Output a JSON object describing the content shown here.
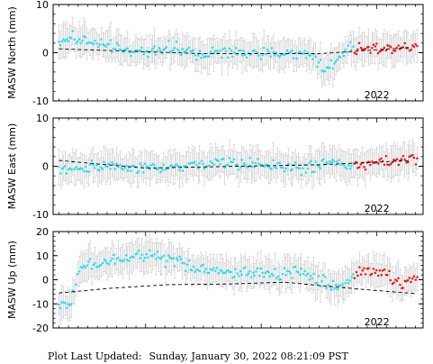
{
  "footer": {
    "label": "Plot Last Updated:",
    "timestamp": "Sunday, January 30, 2022 08:21:09 PST"
  },
  "colors": {
    "points": "#22ddee",
    "recent_points": "#ee1111",
    "error_bars": "#cccccc",
    "trend": "#000000",
    "axes": "#000000"
  },
  "chart_data": [
    {
      "type": "scatter",
      "ylabel": "MASW North (mm)",
      "ylim": [
        -10,
        10
      ],
      "yticks": [
        -10,
        0,
        10
      ],
      "xlim": [
        2019.2,
        2022.4
      ],
      "xticks": [
        {
          "value": 2022.0,
          "label": "2022"
        }
      ],
      "trend": [
        [
          2019.25,
          0.8
        ],
        [
          2020.5,
          -0.2
        ],
        [
          2021.5,
          -0.2
        ],
        [
          2022.3,
          1.1
        ]
      ],
      "anchors": [
        [
          2019.25,
          2.5
        ],
        [
          2019.4,
          3.0
        ],
        [
          2019.55,
          2.0
        ],
        [
          2019.8,
          0.4
        ],
        [
          2020.0,
          0.2
        ],
        [
          2020.2,
          1.0
        ],
        [
          2020.45,
          -0.3
        ],
        [
          2020.8,
          0.0
        ],
        [
          2021.2,
          -0.2
        ],
        [
          2021.45,
          -0.5
        ],
        [
          2021.55,
          -3.5
        ],
        [
          2021.65,
          -1.5
        ],
        [
          2021.75,
          0.8
        ],
        [
          2022.0,
          1.0
        ],
        [
          2022.35,
          1.4
        ]
      ],
      "recent_from": 2021.8
    },
    {
      "type": "scatter",
      "ylabel": "MASW East (mm)",
      "ylim": [
        -10,
        10
      ],
      "yticks": [
        -10,
        0,
        10
      ],
      "xlim": [
        2019.2,
        2022.4
      ],
      "xticks": [
        {
          "value": 2022.0,
          "label": "2022"
        }
      ],
      "trend": [
        [
          2019.25,
          1.2
        ],
        [
          2020.0,
          -0.4
        ],
        [
          2020.8,
          0.0
        ],
        [
          2021.5,
          0.3
        ],
        [
          2022.3,
          1.2
        ]
      ],
      "anchors": [
        [
          2019.25,
          -0.8
        ],
        [
          2019.4,
          -0.3
        ],
        [
          2019.6,
          0.0
        ],
        [
          2019.9,
          -0.5
        ],
        [
          2020.2,
          -0.6
        ],
        [
          2020.5,
          0.6
        ],
        [
          2020.8,
          0.6
        ],
        [
          2021.1,
          0.2
        ],
        [
          2021.35,
          -0.6
        ],
        [
          2021.6,
          0.9
        ],
        [
          2021.85,
          0.0
        ],
        [
          2022.1,
          1.3
        ],
        [
          2022.35,
          1.6
        ]
      ],
      "recent_from": 2021.8
    },
    {
      "type": "scatter",
      "ylabel": "MASW Up (mm)",
      "ylim": [
        -20,
        20
      ],
      "yticks": [
        -20,
        -10,
        0,
        10,
        20
      ],
      "xlim": [
        2019.2,
        2022.4
      ],
      "xticks": [
        {
          "value": 2022.0,
          "label": "2022"
        }
      ],
      "trend": [
        [
          2019.25,
          -5.5
        ],
        [
          2019.7,
          -3.5
        ],
        [
          2020.2,
          -2.0
        ],
        [
          2020.7,
          -1.8
        ],
        [
          2021.2,
          -1.0
        ],
        [
          2021.6,
          -2.8
        ],
        [
          2022.0,
          -4.5
        ],
        [
          2022.35,
          -5.8
        ]
      ],
      "anchors": [
        [
          2019.25,
          -11.0
        ],
        [
          2019.35,
          -10.0
        ],
        [
          2019.45,
          6.0
        ],
        [
          2019.6,
          7.0
        ],
        [
          2019.75,
          8.0
        ],
        [
          2019.95,
          10.0
        ],
        [
          2020.1,
          9.0
        ],
        [
          2020.3,
          6.5
        ],
        [
          2020.5,
          4.0
        ],
        [
          2020.75,
          3.0
        ],
        [
          2021.0,
          2.5
        ],
        [
          2021.3,
          3.5
        ],
        [
          2021.5,
          0.0
        ],
        [
          2021.65,
          -3.0
        ],
        [
          2021.85,
          3.5
        ],
        [
          2022.05,
          3.0
        ],
        [
          2022.2,
          -2.0
        ],
        [
          2022.35,
          1.0
        ]
      ],
      "recent_from": 2021.8
    }
  ]
}
